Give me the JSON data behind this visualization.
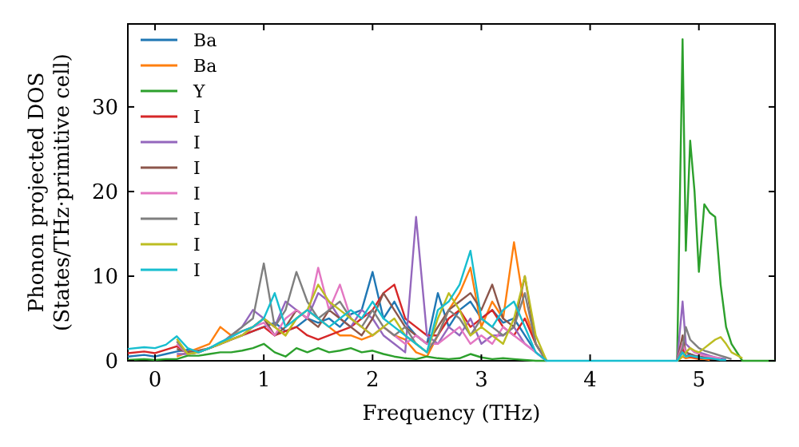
{
  "chart_data": {
    "type": "line",
    "xlabel": "Frequency (THz)",
    "ylabel": "Phonon projected DOS\n(States/THz·primitive cell)",
    "x": [
      -0.25,
      -0.1,
      0,
      0.1,
      0.2,
      0.3,
      0.4,
      0.5,
      0.6,
      0.7,
      0.8,
      0.9,
      1.0,
      1.1,
      1.2,
      1.3,
      1.4,
      1.5,
      1.6,
      1.7,
      1.8,
      1.9,
      2.0,
      2.1,
      2.2,
      2.3,
      2.4,
      2.5,
      2.6,
      2.7,
      2.8,
      2.9,
      3.0,
      3.1,
      3.2,
      3.3,
      3.4,
      3.5,
      3.6,
      4.0,
      4.5,
      4.8,
      4.85,
      4.88,
      4.92,
      4.96,
      5.0,
      5.05,
      5.1,
      5.15,
      5.2,
      5.25,
      5.3,
      5.4,
      5.5,
      5.7
    ],
    "xlim": [
      -0.25,
      5.7
    ],
    "xticks": [
      0,
      1,
      2,
      3,
      4,
      5
    ],
    "ylim": [
      0,
      39.8
    ],
    "yticks": [
      0,
      10,
      20,
      30
    ],
    "grid": false,
    "legend": "top left",
    "series": [
      {
        "name": "Ba",
        "color": "#1f77b4",
        "values": [
          0.5,
          0.7,
          0.5,
          0.8,
          1.1,
          1.3,
          1,
          1.5,
          2,
          2.5,
          3,
          3.5,
          4,
          4.5,
          3.5,
          4,
          5,
          4.5,
          5,
          4,
          5.5,
          6,
          10.5,
          5,
          7,
          4.5,
          3,
          2,
          8,
          4,
          6,
          7,
          5,
          6,
          4.5,
          5,
          3,
          1,
          0,
          null,
          null,
          0,
          1,
          0.5,
          0.8,
          0.6,
          0.5,
          0.4,
          0.3,
          0.3,
          0.2,
          null,
          null,
          null,
          null,
          null
        ]
      },
      {
        "name": "Ba",
        "color": "#ff7f0e",
        "values": [
          null,
          null,
          null,
          null,
          0.5,
          1,
          1.5,
          2,
          4,
          3,
          3.5,
          4,
          5,
          4,
          3,
          5,
          6,
          5,
          4,
          3,
          3,
          2.5,
          3,
          4,
          3,
          2.5,
          1,
          0.5,
          3,
          6,
          8,
          11,
          4,
          7,
          5,
          14,
          6,
          2,
          0,
          null,
          null,
          0,
          0.5,
          0.3,
          0.4,
          0.3,
          0.2,
          0.2,
          0.1,
          null,
          null,
          null,
          null,
          null,
          null,
          null
        ]
      },
      {
        "name": "Y",
        "color": "#2ca02c",
        "values": [
          0.1,
          0.2,
          0.1,
          0.2,
          0.2,
          0.6,
          0.6,
          0.8,
          1,
          1,
          1.2,
          1.5,
          2,
          1,
          0.5,
          1.5,
          1,
          1.5,
          1,
          1.2,
          1.5,
          1,
          1.2,
          0.8,
          0.5,
          0.3,
          0.2,
          0.5,
          0.3,
          0.2,
          0.3,
          0.8,
          0.4,
          0.2,
          0.3,
          0.2,
          0.1,
          0,
          0,
          null,
          null,
          0,
          38,
          13,
          26,
          20,
          10.5,
          18.5,
          17.5,
          17,
          9,
          4,
          2,
          0,
          0,
          0
        ]
      },
      {
        "name": "I",
        "color": "#d62728",
        "values": [
          0.9,
          1.1,
          0.9,
          1.3,
          1.7,
          1,
          1,
          1.5,
          2,
          2.5,
          3,
          3.5,
          4,
          3,
          3.5,
          4,
          3,
          2.5,
          3,
          3.5,
          4,
          5,
          6,
          8,
          9,
          5,
          4,
          3,
          3,
          5,
          6,
          4,
          5,
          6,
          4,
          3,
          5,
          2,
          0,
          null,
          null,
          0,
          1.5,
          0.6,
          0.5,
          0.4,
          0.3,
          0.3,
          0.2,
          0.2,
          null,
          null,
          null,
          null,
          null,
          null
        ]
      },
      {
        "name": "I",
        "color": "#9467bd",
        "values": [
          null,
          null,
          null,
          null,
          0.8,
          0.8,
          1,
          1.5,
          2,
          3,
          4,
          6,
          5,
          4,
          7,
          6,
          5,
          8,
          7,
          5,
          4,
          6,
          5,
          3,
          2,
          1,
          17,
          3,
          2,
          4,
          3,
          5,
          2,
          3,
          3,
          4,
          2,
          1,
          0,
          null,
          null,
          0,
          7,
          2,
          1.5,
          1,
          1,
          0.8,
          0.6,
          0.4,
          0.3,
          0.2,
          null,
          null,
          null,
          null
        ]
      },
      {
        "name": "I",
        "color": "#8c564b",
        "values": [
          null,
          null,
          null,
          null,
          1.4,
          1,
          1.2,
          1.5,
          2,
          2.5,
          3,
          4,
          5,
          3,
          4,
          6,
          5,
          4,
          6,
          5,
          4,
          3,
          5,
          8,
          6,
          4,
          3,
          2,
          4,
          6,
          7,
          8,
          6,
          9,
          5,
          4,
          10,
          2,
          0,
          null,
          null,
          0,
          3,
          1,
          0.8,
          0.6,
          0.5,
          0.4,
          0.3,
          null,
          null,
          null,
          null,
          null,
          null,
          null
        ]
      },
      {
        "name": "I",
        "color": "#e377c2",
        "values": [
          null,
          null,
          null,
          null,
          2.0,
          0.8,
          1,
          1.5,
          2,
          2.5,
          3,
          4,
          4.5,
          3,
          5,
          6,
          5,
          11,
          6,
          9,
          5,
          4,
          3,
          4,
          3,
          2,
          3,
          2,
          2,
          3,
          4,
          2,
          3,
          2,
          4,
          3,
          2,
          1,
          0,
          null,
          null,
          0,
          2,
          1,
          1.5,
          1,
          0.8,
          0.6,
          0.5,
          0.4,
          0.3,
          null,
          null,
          null,
          null,
          null
        ]
      },
      {
        "name": "I",
        "color": "#7f7f7f",
        "values": [
          null,
          null,
          null,
          null,
          2.3,
          0.8,
          1,
          1.5,
          2,
          3,
          4,
          5,
          11.5,
          4,
          6,
          10.5,
          7,
          5,
          6,
          7,
          5,
          4,
          6,
          4,
          3,
          4,
          2,
          1,
          3,
          6,
          5,
          3,
          5,
          4,
          3,
          4,
          8,
          2,
          0,
          null,
          null,
          0,
          1.5,
          4,
          2.5,
          2,
          1.5,
          1.2,
          1,
          0.8,
          0.6,
          0.4,
          0.2,
          null,
          null,
          null
        ]
      },
      {
        "name": "I",
        "color": "#bcbd22",
        "values": [
          null,
          null,
          null,
          null,
          2.6,
          0.8,
          1,
          1.5,
          2,
          2.5,
          3,
          4,
          5,
          4,
          3,
          5,
          6,
          9,
          7,
          6,
          5,
          4,
          3,
          4,
          5,
          3,
          2,
          1,
          5,
          8,
          6,
          3,
          4,
          3,
          2,
          5,
          10,
          3,
          0,
          null,
          null,
          0,
          0.5,
          1,
          1.5,
          1.2,
          1,
          1.5,
          2,
          2.5,
          2.8,
          2,
          1,
          0.3,
          null,
          null
        ]
      },
      {
        "name": "I",
        "color": "#17becf",
        "values": [
          1.4,
          1.6,
          1.5,
          1.9,
          2.9,
          1.5,
          1,
          1.5,
          2.2,
          2.8,
          3.5,
          4,
          5,
          8,
          4,
          5,
          6,
          5,
          4,
          5,
          6,
          5,
          7,
          5,
          4,
          3,
          2,
          1,
          6,
          7,
          9,
          13,
          5,
          4,
          6,
          7,
          4,
          1,
          0,
          0,
          0,
          0,
          1,
          0.5,
          0.6,
          0.5,
          0.4,
          0.3,
          0.3,
          0.2,
          0.1,
          0.1,
          null,
          null,
          null,
          null
        ]
      }
    ]
  }
}
